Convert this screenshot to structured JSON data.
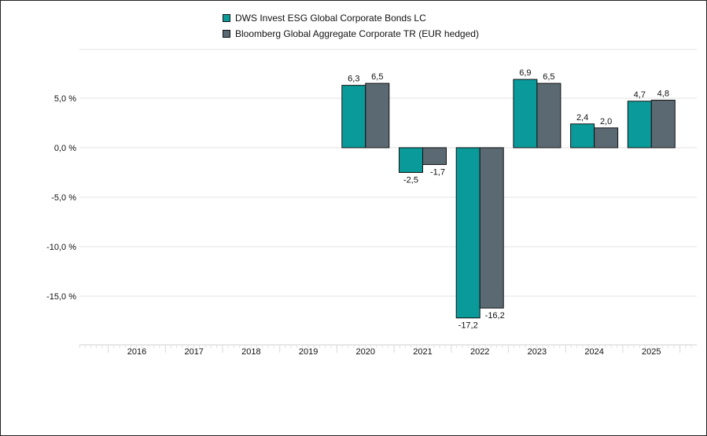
{
  "chart_data": {
    "type": "bar",
    "categories": [
      "2016",
      "2017",
      "2018",
      "2019",
      "2020",
      "2021",
      "2022",
      "2023",
      "2024",
      "2025"
    ],
    "series": [
      {
        "name": "DWS Invest ESG Global Corporate Bonds LC",
        "color": "#0a9a9a",
        "values": [
          null,
          null,
          null,
          null,
          6.3,
          -2.5,
          -17.2,
          6.9,
          2.4,
          4.7
        ],
        "labels": [
          "",
          "",
          "",
          "",
          "6,3",
          "-2,5",
          "-17,2",
          "6,9",
          "2,4",
          "4,7"
        ]
      },
      {
        "name": "Bloomberg Global Aggregate Corporate TR (EUR hedged)",
        "color": "#5b6973",
        "values": [
          null,
          null,
          null,
          null,
          6.5,
          -1.7,
          -16.2,
          6.5,
          2.0,
          4.8
        ],
        "labels": [
          "",
          "",
          "",
          "",
          "6,5",
          "-1,7",
          "-16,2",
          "6,5",
          "2,0",
          "4,8"
        ]
      }
    ],
    "yticks": [
      5,
      0,
      -5,
      -10,
      -15
    ],
    "ytick_labels": [
      "5,0 %",
      "0,0 %",
      "-5,0 %",
      "-10,0 %",
      "-15,0 %"
    ],
    "ylim": [
      -20,
      10
    ],
    "grid": true,
    "legend_position": "top-center"
  }
}
